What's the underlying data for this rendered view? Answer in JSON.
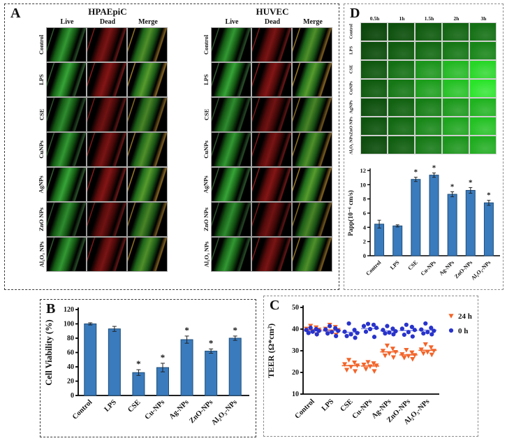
{
  "panels": {
    "A": {
      "label": "A",
      "groups": [
        {
          "title": "HPAEpiC"
        },
        {
          "title": "HUVEC"
        }
      ],
      "column_headers": [
        "Live",
        "Dead",
        "Merge"
      ],
      "row_labels": [
        "Control",
        "LPS",
        "CSE",
        "CuNPs",
        "AgNPs",
        "ZnO NPs",
        "Al₂O₃ NPs"
      ]
    },
    "B": {
      "label": "B"
    },
    "C": {
      "label": "C"
    },
    "D": {
      "label": "D",
      "timepoints": [
        "0.5h",
        "1h",
        "1.5h",
        "2h",
        "3h"
      ],
      "row_labels": [
        "Control",
        "LPS",
        "CSE",
        "CuNPs",
        "AgNPs",
        "ZnO NPs",
        "Al₂O₃ NPs"
      ],
      "fluorescence_intensity": [
        [
          0.1,
          0.16,
          0.22,
          0.28,
          0.34
        ],
        [
          0.14,
          0.22,
          0.3,
          0.38,
          0.46
        ],
        [
          0.2,
          0.34,
          0.55,
          0.75,
          0.92
        ],
        [
          0.22,
          0.38,
          0.6,
          0.8,
          1.0
        ],
        [
          0.16,
          0.26,
          0.42,
          0.58,
          0.72
        ],
        [
          0.18,
          0.3,
          0.48,
          0.64,
          0.8
        ],
        [
          0.14,
          0.24,
          0.4,
          0.55,
          0.68
        ]
      ]
    }
  },
  "colors": {
    "bar_fill": "#3a7bbd",
    "bar_edge": "#1f4e79",
    "orange": "#f3652a",
    "blue": "#2833cb",
    "blue_mean_line": "#8a93e6",
    "axis": "#000000"
  },
  "chart_data": [
    {
      "id": "B",
      "type": "bar",
      "title": "",
      "categories": [
        "Control",
        "LPS",
        "CSE",
        "Cu-NPs",
        "Ag-NPs",
        "ZnO-NPs",
        "Al₂O₃-NPs"
      ],
      "values": [
        100,
        93,
        32,
        39,
        78,
        62,
        80
      ],
      "errors": [
        1.5,
        3.5,
        4,
        6,
        5,
        3,
        3
      ],
      "significance": [
        "",
        "",
        "*",
        "*",
        "*",
        "*",
        "*"
      ],
      "xlabel": "",
      "ylabel": "Cell Viability (%)",
      "ylim": [
        0,
        120
      ],
      "ytick_step": 20,
      "grid": "off",
      "legend_position": "none"
    },
    {
      "id": "C",
      "type": "scatter",
      "title": "",
      "categories": [
        "Control",
        "LPS",
        "CSE",
        "Cu-NPs",
        "Ag-NPs",
        "ZnO-NPs",
        "Al₂O₃-NPs"
      ],
      "xlabel": "",
      "ylabel": "TEER (Ω*cm²)",
      "ylim": [
        10,
        50
      ],
      "ytick_step": 10,
      "grid": "off",
      "legend_position": "top-right",
      "series": [
        {
          "name": "24 h",
          "marker": "triangle-down",
          "color": "#f3652a",
          "values": [
            [
              41.5,
              40.8,
              40.2,
              39.8,
              39.2,
              38.4,
              37.6
            ],
            [
              42.0,
              41.0,
              40.2,
              39.6,
              38.8,
              38.0,
              37.4
            ],
            [
              25.8,
              24.6,
              23.8,
              23.2,
              22.6,
              21.2,
              20.6
            ],
            [
              24.8,
              24.2,
              23.6,
              23.2,
              22.8,
              21.6,
              20.6
            ],
            [
              32.4,
              31.0,
              30.0,
              29.4,
              28.8,
              27.8,
              27.0
            ],
            [
              30.4,
              29.2,
              28.4,
              28.0,
              27.6,
              26.8,
              26.2
            ],
            [
              33.0,
              31.6,
              30.6,
              30.0,
              29.4,
              28.8,
              28.2
            ]
          ]
        },
        {
          "name": "0 h",
          "marker": "circle",
          "color": "#2833cb",
          "values": [
            [
              40.6,
              40.0,
              39.6,
              39.2,
              38.8,
              38.2,
              37.6
            ],
            [
              41.4,
              40.4,
              39.8,
              39.2,
              38.6,
              38.0,
              36.8
            ],
            [
              42.6,
              39.6,
              38.8,
              38.2,
              37.6,
              36.8,
              36.0
            ],
            [
              42.4,
              42.0,
              41.4,
              40.6,
              40.0,
              38.8,
              36.4
            ],
            [
              41.4,
              40.2,
              39.6,
              39.0,
              38.4,
              38.0,
              37.6
            ],
            [
              42.0,
              41.0,
              40.2,
              39.6,
              38.6,
              37.4,
              36.6
            ],
            [
              42.6,
              40.6,
              39.8,
              39.2,
              38.6,
              38.0,
              37.6
            ]
          ]
        }
      ]
    },
    {
      "id": "D",
      "type": "bar",
      "title": "",
      "categories": [
        "Control",
        "LPS",
        "CSE",
        "Cu-NPs",
        "Ag-NPs",
        "ZnO-NPs",
        "Al₂O₃-NPs"
      ],
      "values": [
        4.45,
        4.2,
        10.75,
        11.35,
        8.65,
        9.2,
        7.45
      ],
      "errors": [
        0.55,
        0.15,
        0.3,
        0.3,
        0.35,
        0.4,
        0.35
      ],
      "significance": [
        "",
        "",
        "*",
        "*",
        "*",
        "*",
        "*"
      ],
      "xlabel": "",
      "ylabel": "Papp(10⁻⁶ cm/s)",
      "ylim": [
        0,
        12
      ],
      "ytick_step": 2,
      "grid": "off",
      "legend_position": "none"
    }
  ]
}
